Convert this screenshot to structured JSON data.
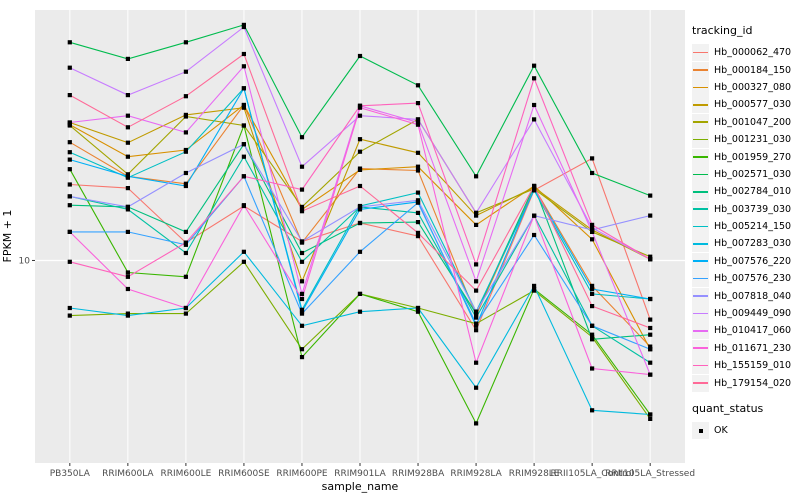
{
  "figure": {
    "background": "#FFFFFF",
    "panel_background": "#EBEBEB",
    "grid_color": "#FFFFFF",
    "axis_text_color": "#4D4D4D",
    "axis_title_color": "#000000",
    "tick_mark_color": "#333333",
    "point_color": "#000000"
  },
  "axes": {
    "x_title": "sample_name",
    "y_title": "FPKM + 1",
    "y_tick_label": "10"
  },
  "legend": {
    "title": "tracking_id"
  },
  "legend_quant": {
    "title": "quant_status",
    "ok_label": "OK"
  },
  "chart_data": {
    "type": "line",
    "title": "",
    "xlabel": "sample_name",
    "ylabel": "FPKM + 1",
    "y_scale": "log10",
    "y_ticks": [
      10
    ],
    "ylim": [
      2.2,
      70
    ],
    "grid": true,
    "legend_position": "right",
    "marker": "black-square",
    "marker_legend": {
      "title": "quant_status",
      "entries": [
        "OK"
      ]
    },
    "categories": [
      "PB350LA",
      "RRIM600LA",
      "RRIM600LE",
      "RRIM600SE",
      "RRIM600PE",
      "RRIM901LA",
      "RRIM928BA",
      "RRIM928LA",
      "RRIM928LE",
      "RRII105LA_Control",
      "RRII105LA_Stressed"
    ],
    "series": [
      {
        "name": "Hb_000062_470",
        "color": "#F8766D",
        "values": [
          18.1,
          17.6,
          11.5,
          15.3,
          11.6,
          13.4,
          12.1,
          5.8,
          17.3,
          22.2,
          6.3
        ]
      },
      {
        "name": "Hb_000184_150",
        "color": "#EA8331",
        "values": [
          25.2,
          19.3,
          18.2,
          33.7,
          11.5,
          20.5,
          20.2,
          6.5,
          17.7,
          8.2,
          5.1
        ]
      },
      {
        "name": "Hb_000327_080",
        "color": "#D89000",
        "values": [
          28.9,
          22.5,
          23.7,
          33.7,
          14.9,
          20.3,
          20.8,
          13.2,
          17.9,
          11.8,
          5.0
        ]
      },
      {
        "name": "Hb_000577_030",
        "color": "#C09B00",
        "values": [
          29.4,
          25.1,
          31.2,
          33.0,
          8.5,
          25.8,
          23.2,
          14.2,
          17.7,
          12.7,
          10.1
        ]
      },
      {
        "name": "Hb_001047_200",
        "color": "#A3A500",
        "values": [
          28.7,
          19.6,
          30.8,
          28.7,
          15.2,
          23.4,
          30.1,
          14.5,
          17.5,
          12.5,
          10.3
        ]
      },
      {
        "name": "Hb_001231_030",
        "color": "#7CAE00",
        "values": [
          6.5,
          6.6,
          6.6,
          9.9,
          5.0,
          7.7,
          6.9,
          6.1,
          7.9,
          5.5,
          2.9
        ]
      },
      {
        "name": "Hb_001959_270",
        "color": "#39B600",
        "values": [
          20.4,
          9.1,
          8.8,
          28.7,
          4.7,
          7.7,
          6.7,
          2.8,
          8.0,
          5.6,
          3.0
        ]
      },
      {
        "name": "Hb_002571_030",
        "color": "#00BB4E",
        "values": [
          55,
          48.3,
          55,
          63,
          26.2,
          49.4,
          39.3,
          19.3,
          45.8,
          19.8,
          16.6
        ]
      },
      {
        "name": "Hb_002784_010",
        "color": "#00BF7D",
        "values": [
          15.4,
          15.2,
          12.5,
          24.8,
          10.6,
          13.4,
          13.5,
          6.6,
          17.9,
          5.4,
          5.6
        ]
      },
      {
        "name": "Hb_003739_030",
        "color": "#00C1A3",
        "values": [
          16.5,
          14.9,
          10.6,
          22.5,
          9.9,
          15.2,
          14.5,
          6.4,
          14.2,
          6.0,
          4.5
        ]
      },
      {
        "name": "Hb_005214_150",
        "color": "#00BFC4",
        "values": [
          23.3,
          19.1,
          23.4,
          38.4,
          6.8,
          15.3,
          17.0,
          6.7,
          17.3,
          7.7,
          7.4
        ]
      },
      {
        "name": "Hb_007283_030",
        "color": "#00BADE",
        "values": [
          6.9,
          6.5,
          6.9,
          10.7,
          6.0,
          6.7,
          6.9,
          3.7,
          8.2,
          3.1,
          3.0
        ]
      },
      {
        "name": "Hb_007576_220",
        "color": "#00B0F6",
        "values": [
          22.0,
          19.3,
          17.9,
          38.4,
          6.7,
          14.9,
          15.8,
          6.0,
          17.5,
          8.0,
          7.4
        ]
      },
      {
        "name": "Hb_007576_230",
        "color": "#35A2FF",
        "values": [
          12.5,
          12.5,
          11.3,
          19.3,
          6.6,
          10.7,
          15.7,
          6.1,
          12.2,
          6.0,
          5.0
        ]
      },
      {
        "name": "Hb_007818_040",
        "color": "#9590FF",
        "values": [
          16.5,
          15.2,
          19.8,
          24.8,
          11.6,
          15.2,
          16.0,
          6.7,
          14.2,
          12.7,
          14.2
        ]
      },
      {
        "name": "Hb_009449_090",
        "color": "#C77CFF",
        "values": [
          45.1,
          36.4,
          43.7,
          62,
          20.8,
          31.0,
          30.1,
          14.5,
          30.1,
          12.9,
          10.1
        ]
      },
      {
        "name": "Hb_010417_060",
        "color": "#E76BF3",
        "values": [
          29.4,
          31.0,
          27.2,
          45.6,
          7.7,
          33.5,
          29.4,
          8.5,
          33.7,
          12.5,
          4.1
        ]
      },
      {
        "name": "Hb_011671_230",
        "color": "#FA62DB",
        "values": [
          12.5,
          8.0,
          6.9,
          15.4,
          7.4,
          33.0,
          28.9,
          4.5,
          14.2,
          4.3,
          4.1
        ]
      },
      {
        "name": "Hb_155159_010",
        "color": "#FF62BC",
        "values": [
          9.9,
          8.8,
          11.5,
          19.3,
          17.4,
          33.5,
          34.2,
          9.7,
          41.5,
          13.2,
          10.1
        ]
      },
      {
        "name": "Hb_179154_020",
        "color": "#FF6A98",
        "values": [
          36.4,
          28.3,
          36.1,
          50.2,
          14.7,
          17.9,
          12.4,
          7.9,
          17.9,
          7.0,
          5.9
        ]
      }
    ]
  }
}
